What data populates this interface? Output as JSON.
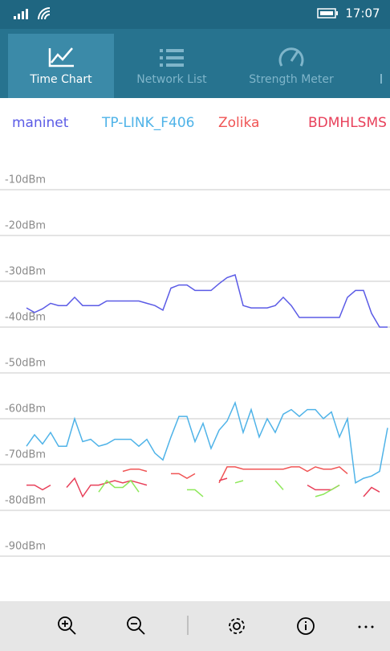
{
  "status_bar": {
    "time": "17:07"
  },
  "tabs": [
    "Time Chart",
    "Network List",
    "Strength Meter"
  ],
  "chart_data": {
    "type": "line",
    "x": [
      0,
      1,
      2,
      3,
      4,
      5,
      6,
      7,
      8,
      9,
      10,
      11,
      12,
      13,
      14,
      15,
      16,
      17,
      18,
      19,
      20,
      21,
      22,
      23,
      24,
      25,
      26,
      27,
      28,
      29,
      30,
      31,
      32,
      33,
      34,
      35,
      36,
      37,
      38,
      39,
      40,
      41,
      42,
      43,
      44,
      45
    ],
    "xlim": [
      0,
      45
    ],
    "ylim": [
      -100,
      0
    ],
    "yticks": [
      {
        "value": -10,
        "label": "-10dBm"
      },
      {
        "value": -20,
        "label": "-20dBm"
      },
      {
        "value": -30,
        "label": "-30dBm"
      },
      {
        "value": -40,
        "label": "-40dBm"
      },
      {
        "value": -50,
        "label": "-50dBm"
      },
      {
        "value": -60,
        "label": "-60dBm"
      },
      {
        "value": -70,
        "label": "-70dBm"
      },
      {
        "value": -80,
        "label": "-80dBm"
      },
      {
        "value": -90,
        "label": "-90dBm"
      }
    ],
    "grid": true,
    "series": [
      {
        "name": "maninet",
        "color": "#5b5be6",
        "values": [
          -35.8,
          -36.8,
          -36,
          -34.8,
          -35.3,
          -35.3,
          -33.5,
          -35.3,
          -35.3,
          -35.3,
          -34.3,
          -34.3,
          -34.3,
          -34.3,
          -34.3,
          -34.8,
          -35.3,
          -36.3,
          -31.5,
          -30.8,
          -30.8,
          -32,
          -32,
          -32,
          -30.5,
          -29.2,
          -28.6,
          -35.3,
          -35.8,
          -35.8,
          -35.8,
          -35.3,
          -33.5,
          -35.3,
          -37.9,
          -37.9,
          -37.9,
          -37.9,
          -37.9,
          -37.9,
          -33.5,
          -32,
          -32,
          -37,
          -40,
          -40
        ]
      },
      {
        "name": "TP-LINK_F406",
        "color": "#4fb3e8",
        "values": [
          -66,
          -63.5,
          -65.5,
          -63,
          -66,
          -66,
          -60,
          -65,
          -64.5,
          -66,
          -65.5,
          -64.5,
          -64.5,
          -64.5,
          -66,
          -64.5,
          -67.5,
          -69,
          -64,
          -59.5,
          -59.5,
          -65,
          -61,
          -66.5,
          -62.5,
          -60.5,
          -56.5,
          -63,
          -58,
          -64,
          -60,
          -63,
          -59,
          -58,
          -59.5,
          -58,
          -58,
          -60,
          -58.5,
          -64,
          -60,
          -74,
          -73,
          -72.5,
          -71.5,
          -62
        ]
      },
      {
        "name": "Zolika",
        "color": "#f05454",
        "values": [
          null,
          null,
          null,
          null,
          null,
          null,
          null,
          null,
          null,
          null,
          null,
          null,
          -71.5,
          -71,
          -71,
          -71.5,
          null,
          null,
          -72,
          -72,
          -73,
          -72,
          null,
          null,
          -74,
          -70.5,
          -70.5,
          -71,
          -71,
          -71,
          -71,
          -71,
          -71,
          -70.5,
          -70.5,
          -71.5,
          -70.5,
          -71,
          -71,
          -70.5,
          -72,
          null,
          null,
          null,
          null,
          null
        ]
      },
      {
        "name": "BDMHLSMS",
        "color": "#e8405a",
        "values": [
          -74.5,
          -74.5,
          -75.5,
          -74.5,
          null,
          -75,
          -73,
          -77,
          -74.5,
          -74.5,
          -74,
          -73.5,
          -74,
          -73.5,
          -74,
          -74.5,
          null,
          null,
          null,
          null,
          null,
          null,
          null,
          null,
          -73.5,
          -73,
          null,
          null,
          null,
          null,
          null,
          null,
          null,
          null,
          null,
          -74.5,
          -75.5,
          -75.5,
          -75.5,
          -74.5,
          null,
          null,
          -77,
          -75,
          -76,
          null
        ]
      },
      {
        "color": "#8ee85a",
        "values": [
          null,
          null,
          null,
          null,
          null,
          null,
          null,
          null,
          null,
          -76,
          -73.5,
          -75,
          -75,
          -73.5,
          -76,
          null,
          null,
          null,
          null,
          null,
          -75.5,
          -75.5,
          -77,
          null,
          null,
          null,
          -74,
          -73.5,
          null,
          null,
          null,
          -73.5,
          -75.5,
          null,
          null,
          null,
          -77,
          -76.5,
          -75.5,
          -74.5,
          null,
          null,
          null,
          null,
          null,
          null
        ]
      }
    ]
  }
}
